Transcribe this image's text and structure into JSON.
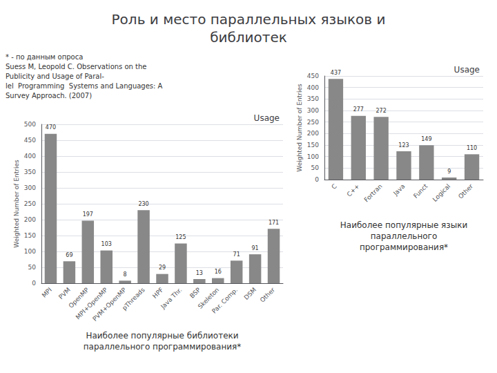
{
  "title": "Роль и место параллельных языков и\nбиблиотек",
  "annotations": [
    "* - по данным опроса\nSuess M, Leopold C. Observations on the\nPublicity and Usage of Paral-\nlel  Programming  Systems and Languages: A\nSurvey Approach. (2007)"
  ],
  "chart_data": [
    {
      "type": "bar",
      "title": "Usage",
      "categories": [
        "MPI",
        "PVM",
        "OpenMP",
        "MPI+OpenMP",
        "PVM+OpenMP",
        "pThreads",
        "HPF",
        "Java Thr.",
        "BSP",
        "Skeleton",
        "Par. Comp.",
        "DSM",
        "Other"
      ],
      "values": [
        470,
        69,
        197,
        103,
        8,
        230,
        29,
        125,
        13,
        16,
        71,
        91,
        171
      ],
      "ylabel": "Weighted Number of Entries",
      "ylim": [
        0,
        500
      ],
      "yticks": [
        0,
        50,
        100,
        150,
        200,
        250,
        300,
        350,
        400,
        450,
        500
      ],
      "color": "#888888",
      "grid": true,
      "data_labels": true,
      "annotations": [
        "Наиболее популярные библиотеки\nпараллельного программирования*"
      ]
    },
    {
      "type": "bar",
      "title": "Usage",
      "categories": [
        "C",
        "C++",
        "Fortran",
        "Java",
        "Funct",
        "Logical",
        "Other"
      ],
      "values": [
        437,
        277,
        272,
        123,
        149,
        9,
        110
      ],
      "ylabel": "Weighted Number of Entries",
      "ylim": [
        0,
        450
      ],
      "yticks": [
        0,
        50,
        100,
        150,
        200,
        250,
        300,
        350,
        400,
        450
      ],
      "color": "#888888",
      "grid": true,
      "data_labels": true,
      "annotations": [
        "Наиболее популярные языки\nпараллельного\nпрограммирования*"
      ]
    }
  ]
}
